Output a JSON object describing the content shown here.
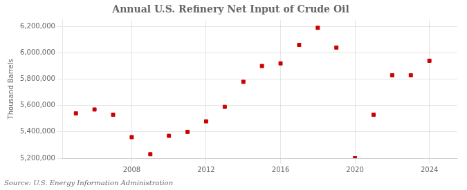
{
  "chart_data": {
    "type": "scatter",
    "title": "Annual U.S. Refinery Net Input of Crude Oil",
    "y_label": "Thousand Barrels",
    "annotation": "Source: U.S. Energy Information Administration",
    "x": [
      2005,
      2006,
      2007,
      2008,
      2009,
      2010,
      2011,
      2012,
      2013,
      2014,
      2015,
      2016,
      2017,
      2018,
      2019,
      2020,
      2021,
      2022,
      2023,
      2024
    ],
    "values": [
      5540000,
      5570000,
      5530000,
      5360000,
      5230000,
      5370000,
      5400000,
      5480000,
      5590000,
      5780000,
      5900000,
      5920000,
      6060000,
      6190000,
      6040000,
      5200000,
      5530000,
      5830000,
      5830000,
      5940000
    ],
    "color": "#cc0000",
    "marker": "square",
    "xlim": [
      2004.3,
      2025.5
    ],
    "xticks": [
      2008,
      2012,
      2016,
      2020,
      2024
    ],
    "ylim": [
      5200000,
      6250000
    ],
    "yticks": [
      {
        "value": 5200000,
        "label": "5,200,000"
      },
      {
        "value": 5400000,
        "label": "5,400,000"
      },
      {
        "value": 5600000,
        "label": "5,600,000"
      },
      {
        "value": 5800000,
        "label": "5,800,000"
      },
      {
        "value": 6000000,
        "label": "6,000,000"
      },
      {
        "value": 6200000,
        "label": "6,200,000"
      }
    ],
    "grid": true
  }
}
